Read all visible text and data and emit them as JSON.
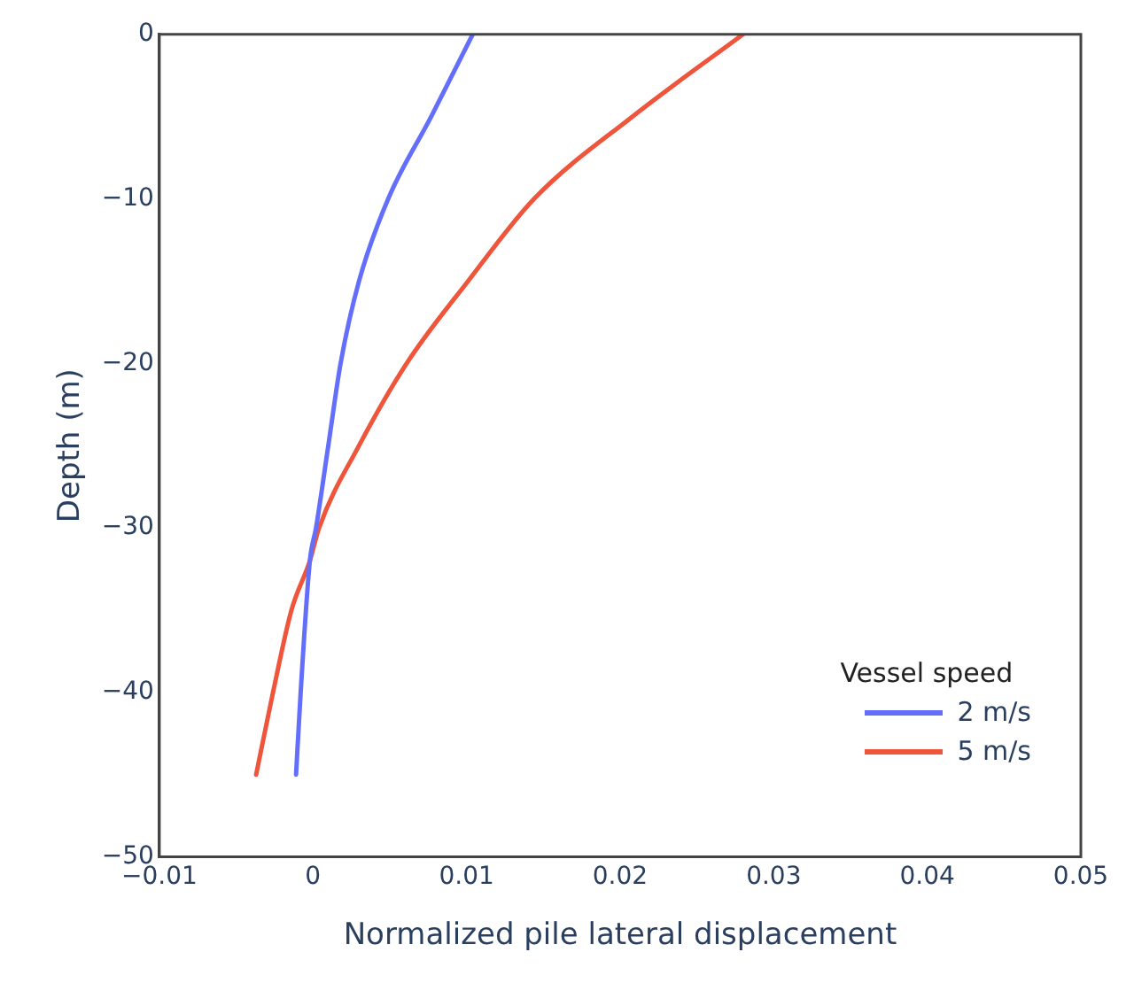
{
  "chart_data": {
    "type": "line",
    "xlabel": "Normalized pile lateral displacement",
    "ylabel": "Depth (m)",
    "legend_title": "Vessel speed",
    "legend": "bottom right",
    "grid": false,
    "marker": "none",
    "line_style": "solid",
    "xlim": [
      -0.01,
      0.05
    ],
    "xticks": [
      {
        "value": -0.01,
        "label": "−0.01"
      },
      0,
      0.01,
      0.02,
      0.03,
      0.04,
      0.05
    ],
    "ylim": [
      -50,
      0
    ],
    "yticks": [
      {
        "value": -50,
        "label": "−50"
      },
      {
        "value": -40,
        "label": "−40"
      },
      {
        "value": -30,
        "label": "−30"
      },
      {
        "value": -20,
        "label": "−20"
      },
      {
        "value": -10,
        "label": "−10"
      },
      0
    ],
    "series": [
      {
        "name": "2 m/s",
        "color": "#636efa",
        "x": [
          0.0104,
          0.0077,
          0.0049,
          0.003,
          0.0018,
          0.001,
          0.0002,
          -0.0002,
          -0.0008,
          -0.0011
        ],
        "values": [
          0,
          -5,
          -10,
          -15,
          -20,
          -25,
          -30,
          -32,
          -40,
          -45
        ]
      },
      {
        "name": "5 m/s",
        "color": "#ef553b",
        "x": [
          0.028,
          0.0208,
          0.0144,
          0.0101,
          0.0061,
          0.003,
          0.0004,
          -0.0002,
          -0.0014,
          -0.0026,
          -0.0037
        ],
        "values": [
          0,
          -5,
          -10,
          -15,
          -20,
          -25,
          -30,
          -32,
          -35,
          -40,
          -45
        ]
      }
    ]
  }
}
